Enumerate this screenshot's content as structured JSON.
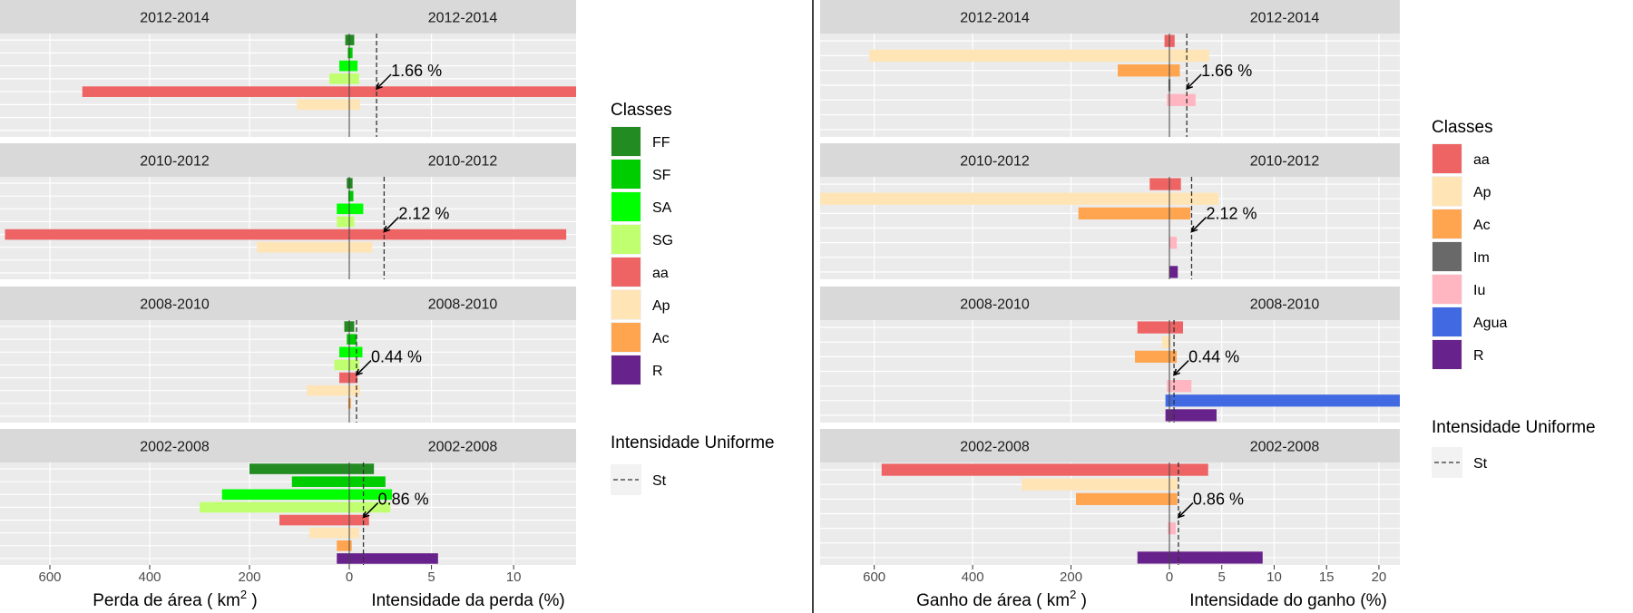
{
  "chart_data": [
    {
      "type": "bar",
      "name": "perda",
      "xlabel_left": "Perda de área ( km² )",
      "xlabel_left_main": "Perda de área ( km",
      "xlabel_left_sup": "2",
      "xlabel_left_close": " )",
      "xlabel_right": "Intensidade da perda (%)",
      "left_ticks": [
        "600",
        "400",
        "200",
        "0"
      ],
      "left_tick_values": [
        600,
        400,
        200,
        0
      ],
      "right_ticks": [
        "0",
        "5",
        "10"
      ],
      "right_tick_values": [
        0,
        5,
        10
      ],
      "left_range": [
        700,
        0
      ],
      "right_range": [
        0,
        13.8
      ],
      "categories": [
        "FF",
        "SF",
        "SA",
        "SG",
        "aa",
        "Ap",
        "Ac",
        "R"
      ],
      "legend": {
        "title": "Classes",
        "entries": [
          {
            "label": "FF",
            "color": "#228B22"
          },
          {
            "label": "SF",
            "color": "#00CD00"
          },
          {
            "label": "SA",
            "color": "#00FF00"
          },
          {
            "label": "SG",
            "color": "#C0FF6F"
          },
          {
            "label": "aa",
            "color": "#EE6363"
          },
          {
            "label": "Ap",
            "color": "#FFE4B5"
          },
          {
            "label": "Ac",
            "color": "#FFA54F"
          },
          {
            "label": "R",
            "color": "#68228B"
          }
        ]
      },
      "uniform_legend": {
        "title": "Intensidade Uniforme",
        "label": "St"
      },
      "panels": [
        {
          "period": "2012-2014",
          "uniform_intensity": 1.66,
          "annotation": "1.66 %",
          "series": [
            {
              "class": "FF",
              "area": 8,
              "intensity": 0.3
            },
            {
              "class": "SF",
              "area": 3,
              "intensity": 0.2
            },
            {
              "class": "SA",
              "area": 20,
              "intensity": 0.5
            },
            {
              "class": "SG",
              "area": 40,
              "intensity": 0.6
            },
            {
              "class": "aa",
              "area": 535,
              "intensity": 13.8
            },
            {
              "class": "Ap",
              "area": 105,
              "intensity": 0.65
            },
            {
              "class": "Ac",
              "area": 0,
              "intensity": 0
            },
            {
              "class": "R",
              "area": 0,
              "intensity": 0
            }
          ]
        },
        {
          "period": "2010-2012",
          "uniform_intensity": 2.12,
          "annotation": "2.12 %",
          "series": [
            {
              "class": "FF",
              "area": 5,
              "intensity": 0.2
            },
            {
              "class": "SF",
              "area": 2,
              "intensity": 0.25
            },
            {
              "class": "SA",
              "area": 25,
              "intensity": 0.85
            },
            {
              "class": "SG",
              "area": 25,
              "intensity": 0.3
            },
            {
              "class": "aa",
              "area": 690,
              "intensity": 13.2
            },
            {
              "class": "Ap",
              "area": 185,
              "intensity": 1.4
            },
            {
              "class": "Ac",
              "area": 1,
              "intensity": 0
            },
            {
              "class": "R",
              "area": 0,
              "intensity": 0
            }
          ]
        },
        {
          "period": "2008-2010",
          "uniform_intensity": 0.44,
          "annotation": "0.44 %",
          "series": [
            {
              "class": "FF",
              "area": 10,
              "intensity": 0.3
            },
            {
              "class": "SF",
              "area": 5,
              "intensity": 0.45
            },
            {
              "class": "SA",
              "area": 20,
              "intensity": 0.8
            },
            {
              "class": "SG",
              "area": 30,
              "intensity": 0.6
            },
            {
              "class": "aa",
              "area": 20,
              "intensity": 0.5
            },
            {
              "class": "Ap",
              "area": 85,
              "intensity": 0.65
            },
            {
              "class": "Ac",
              "area": 2,
              "intensity": 0.1
            },
            {
              "class": "R",
              "area": 0,
              "intensity": 0
            }
          ]
        },
        {
          "period": "2002-2008",
          "uniform_intensity": 0.86,
          "annotation": "0.86 %",
          "series": [
            {
              "class": "FF",
              "area": 200,
              "intensity": 1.5
            },
            {
              "class": "SF",
              "area": 115,
              "intensity": 2.2
            },
            {
              "class": "SA",
              "area": 255,
              "intensity": 2.6
            },
            {
              "class": "SG",
              "area": 300,
              "intensity": 2.5
            },
            {
              "class": "aa",
              "area": 140,
              "intensity": 1.2
            },
            {
              "class": "Ap",
              "area": 80,
              "intensity": 0.6
            },
            {
              "class": "Ac",
              "area": 25,
              "intensity": 0.15
            },
            {
              "class": "R",
              "area": 25,
              "intensity": 5.4
            }
          ]
        }
      ]
    },
    {
      "type": "bar",
      "name": "ganho",
      "xlabel_left": "Ganho de área ( km² )",
      "xlabel_left_main": "Ganho de área ( km",
      "xlabel_left_sup": "2",
      "xlabel_left_close": " )",
      "xlabel_right": "Intensidade do ganho (%)",
      "left_ticks": [
        "600",
        "400",
        "200",
        "0"
      ],
      "left_tick_values": [
        600,
        400,
        200,
        0
      ],
      "right_ticks": [
        "0",
        "5",
        "10",
        "15",
        "20"
      ],
      "right_tick_values": [
        0,
        5,
        10,
        15,
        20
      ],
      "left_range": [
        710,
        0
      ],
      "right_range": [
        0,
        22
      ],
      "categories": [
        "aa",
        "Ap",
        "Ac",
        "Im",
        "Iu",
        "Agua",
        "R"
      ],
      "legend": {
        "title": "Classes",
        "entries": [
          {
            "label": "aa",
            "color": "#EE6363"
          },
          {
            "label": "Ap",
            "color": "#FFE4B5"
          },
          {
            "label": "Ac",
            "color": "#FFA54F"
          },
          {
            "label": "Im",
            "color": "#696969"
          },
          {
            "label": "Iu",
            "color": "#FFB6C1"
          },
          {
            "label": "Agua",
            "color": "#4169E1"
          },
          {
            "label": "R",
            "color": "#68228B"
          }
        ]
      },
      "uniform_legend": {
        "title": "Intensidade Uniforme",
        "label": "St"
      },
      "panels": [
        {
          "period": "2012-2014",
          "uniform_intensity": 1.66,
          "annotation": "1.66 %",
          "series": [
            {
              "class": "aa",
              "area": 10,
              "intensity": 0.5
            },
            {
              "class": "Ap",
              "area": 610,
              "intensity": 3.8
            },
            {
              "class": "Ac",
              "area": 105,
              "intensity": 1.0
            },
            {
              "class": "Im",
              "area": 2,
              "intensity": 0.1
            },
            {
              "class": "Iu",
              "area": 5,
              "intensity": 2.5
            },
            {
              "class": "Agua",
              "area": 0,
              "intensity": 0
            },
            {
              "class": "R",
              "area": 0,
              "intensity": 0
            }
          ]
        },
        {
          "period": "2010-2012",
          "uniform_intensity": 2.12,
          "annotation": "2.12 %",
          "series": [
            {
              "class": "aa",
              "area": 40,
              "intensity": 1.1
            },
            {
              "class": "Ap",
              "area": 710,
              "intensity": 4.7
            },
            {
              "class": "Ac",
              "area": 185,
              "intensity": 2.0
            },
            {
              "class": "Im",
              "area": 0,
              "intensity": 0
            },
            {
              "class": "Iu",
              "area": 0,
              "intensity": 0.7
            },
            {
              "class": "Agua",
              "area": 0,
              "intensity": 0
            },
            {
              "class": "R",
              "area": 0,
              "intensity": 0.8
            }
          ]
        },
        {
          "period": "2008-2010",
          "uniform_intensity": 0.44,
          "annotation": "0.44 %",
          "series": [
            {
              "class": "aa",
              "area": 65,
              "intensity": 1.3
            },
            {
              "class": "Ap",
              "area": 15,
              "intensity": 0.15
            },
            {
              "class": "Ac",
              "area": 70,
              "intensity": 0.7
            },
            {
              "class": "Im",
              "area": 0,
              "intensity": 0
            },
            {
              "class": "Iu",
              "area": 5,
              "intensity": 2.1
            },
            {
              "class": "Agua",
              "area": 8,
              "intensity": 22
            },
            {
              "class": "R",
              "area": 8,
              "intensity": 4.5
            }
          ]
        },
        {
          "period": "2002-2008",
          "uniform_intensity": 0.86,
          "annotation": "0.86 %",
          "series": [
            {
              "class": "aa",
              "area": 585,
              "intensity": 3.7
            },
            {
              "class": "Ap",
              "area": 300,
              "intensity": 0.8
            },
            {
              "class": "Ac",
              "area": 190,
              "intensity": 0.75
            },
            {
              "class": "Im",
              "area": 0,
              "intensity": 0
            },
            {
              "class": "Iu",
              "area": 3,
              "intensity": 0.6
            },
            {
              "class": "Agua",
              "area": 0,
              "intensity": 0
            },
            {
              "class": "R",
              "area": 65,
              "intensity": 8.9
            }
          ]
        }
      ]
    }
  ],
  "colors": {
    "panel_bg": "#EBEBEB",
    "strip_bg": "#D9D9D9",
    "grid": "#FFFFFF",
    "text": "#1A1A1A",
    "tick": "#4D4D4D"
  }
}
